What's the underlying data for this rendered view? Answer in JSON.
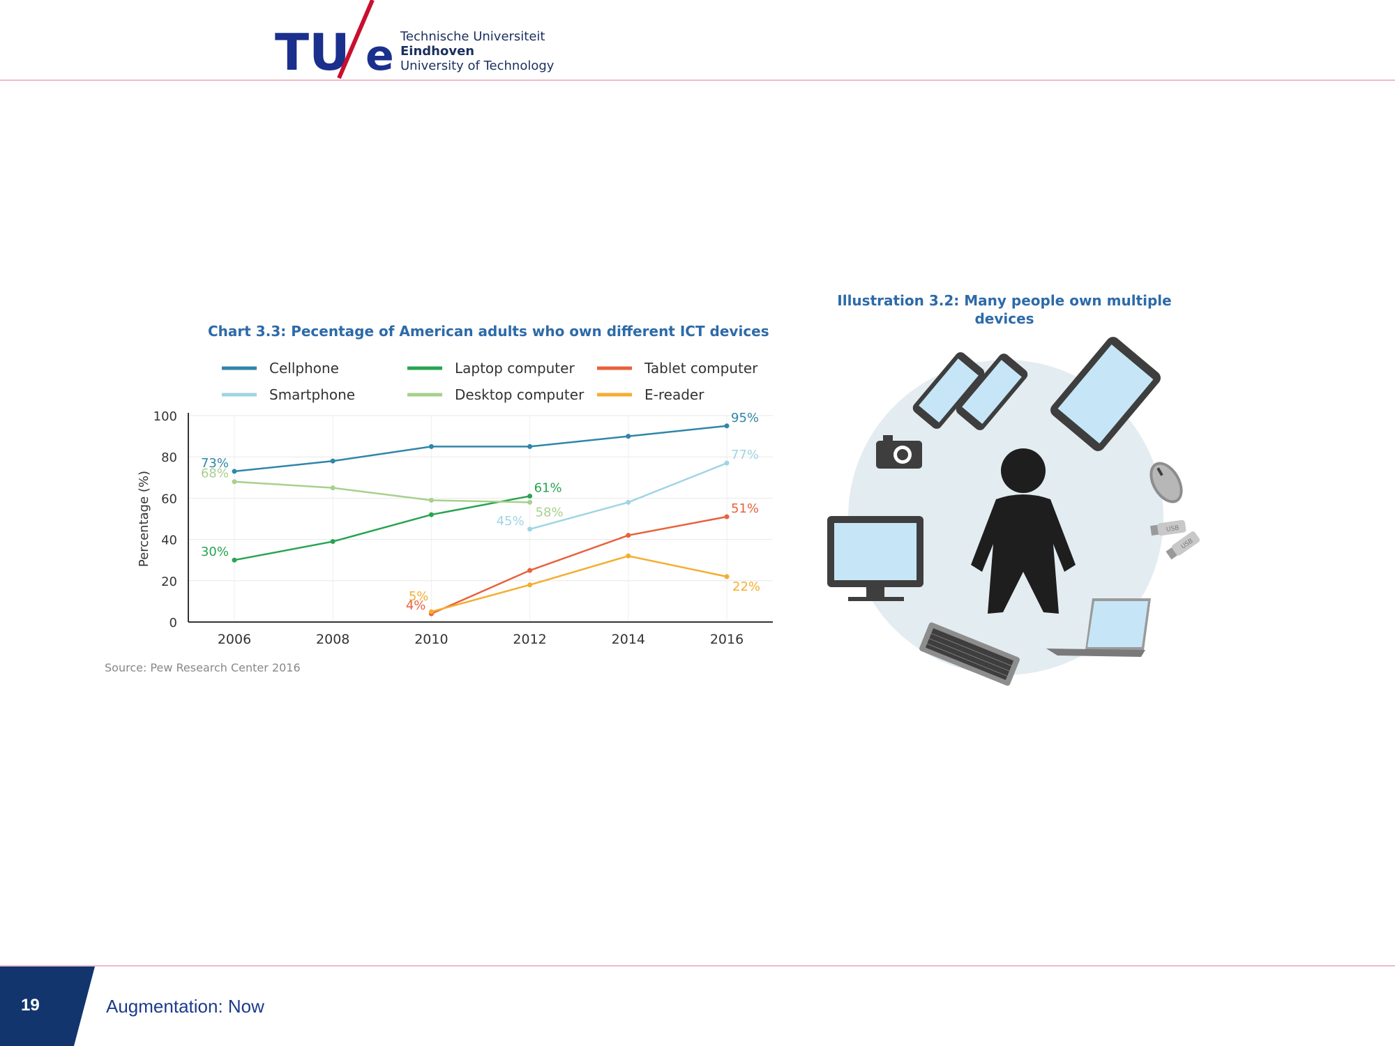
{
  "logo": {
    "mark_left": "TU",
    "mark_right": "e",
    "line1": "Technische Universiteit",
    "line2": "Eindhoven",
    "line3": "University of Technology"
  },
  "footer": {
    "slide_number": "19",
    "title": "Augmentation: Now"
  },
  "illustration": {
    "title": "Illustration 3.2: Many people own multiple devices",
    "usb_label": "USB"
  },
  "source": "Source:  Pew Research Center 2016",
  "colors": {
    "brand_blue": "#1b2f8c",
    "brand_red": "#c8102e",
    "header_line": "#f2b8c6",
    "cellphone": "#2f86a8",
    "smartphone": "#9fd5e3",
    "laptop": "#27a450",
    "desktop": "#a8d08d",
    "tablet": "#e8613c",
    "ereader": "#f5ad2f"
  },
  "chart_data": {
    "type": "line",
    "title": "Chart 3.3: Pecentage of American adults who own different ICT devices",
    "xlabel": "",
    "ylabel": "Percentage (%)",
    "x": [
      2006,
      2008,
      2010,
      2012,
      2014,
      2016
    ],
    "ylim": [
      0,
      100
    ],
    "yticks": [
      0,
      20,
      40,
      60,
      80,
      100
    ],
    "grid": true,
    "legend_position": "top",
    "series": [
      {
        "name": "Cellphone",
        "color": "#2f86a8",
        "points": [
          [
            2006,
            73
          ],
          [
            2008,
            78
          ],
          [
            2010,
            85
          ],
          [
            2012,
            85
          ],
          [
            2014,
            90
          ],
          [
            2016,
            95
          ]
        ],
        "labels": [
          {
            "x": 2006,
            "y": 73,
            "text": "73%",
            "pos": "left"
          },
          {
            "x": 2016,
            "y": 95,
            "text": "95%",
            "pos": "right"
          }
        ]
      },
      {
        "name": "Smartphone",
        "color": "#9fd5e3",
        "points": [
          [
            2012,
            45
          ],
          [
            2014,
            58
          ],
          [
            2016,
            77
          ]
        ],
        "labels": [
          {
            "x": 2012,
            "y": 45,
            "text": "45%",
            "pos": "left"
          },
          {
            "x": 2016,
            "y": 77,
            "text": "77%",
            "pos": "right"
          }
        ]
      },
      {
        "name": "Laptop computer",
        "color": "#27a450",
        "points": [
          [
            2006,
            30
          ],
          [
            2008,
            39
          ],
          [
            2010,
            52
          ],
          [
            2012,
            61
          ]
        ],
        "labels": [
          {
            "x": 2006,
            "y": 30,
            "text": "30%",
            "pos": "left"
          },
          {
            "x": 2012,
            "y": 61,
            "text": "61%",
            "pos": "right"
          }
        ]
      },
      {
        "name": "Desktop computer",
        "color": "#a8d08d",
        "points": [
          [
            2006,
            68
          ],
          [
            2008,
            65
          ],
          [
            2010,
            59
          ],
          [
            2012,
            58
          ]
        ],
        "labels": [
          {
            "x": 2006,
            "y": 68,
            "text": "68%",
            "pos": "left"
          },
          {
            "x": 2012,
            "y": 58,
            "text": "58%",
            "pos": "below-right"
          }
        ]
      },
      {
        "name": "Tablet computer",
        "color": "#e8613c",
        "points": [
          [
            2010,
            4
          ],
          [
            2012,
            25
          ],
          [
            2014,
            42
          ],
          [
            2016,
            51
          ]
        ],
        "labels": [
          {
            "x": 2010,
            "y": 4,
            "text": "4%",
            "pos": "left"
          },
          {
            "x": 2016,
            "y": 51,
            "text": "51%",
            "pos": "right"
          }
        ]
      },
      {
        "name": "E-reader",
        "color": "#f5ad2f",
        "points": [
          [
            2010,
            5
          ],
          [
            2012,
            18
          ],
          [
            2014,
            32
          ],
          [
            2016,
            22
          ]
        ],
        "labels": [
          {
            "x": 2010,
            "y": 5,
            "text": "5%",
            "pos": "above-left"
          },
          {
            "x": 2016,
            "y": 22,
            "text": "22%",
            "pos": "below-right"
          }
        ]
      }
    ]
  }
}
